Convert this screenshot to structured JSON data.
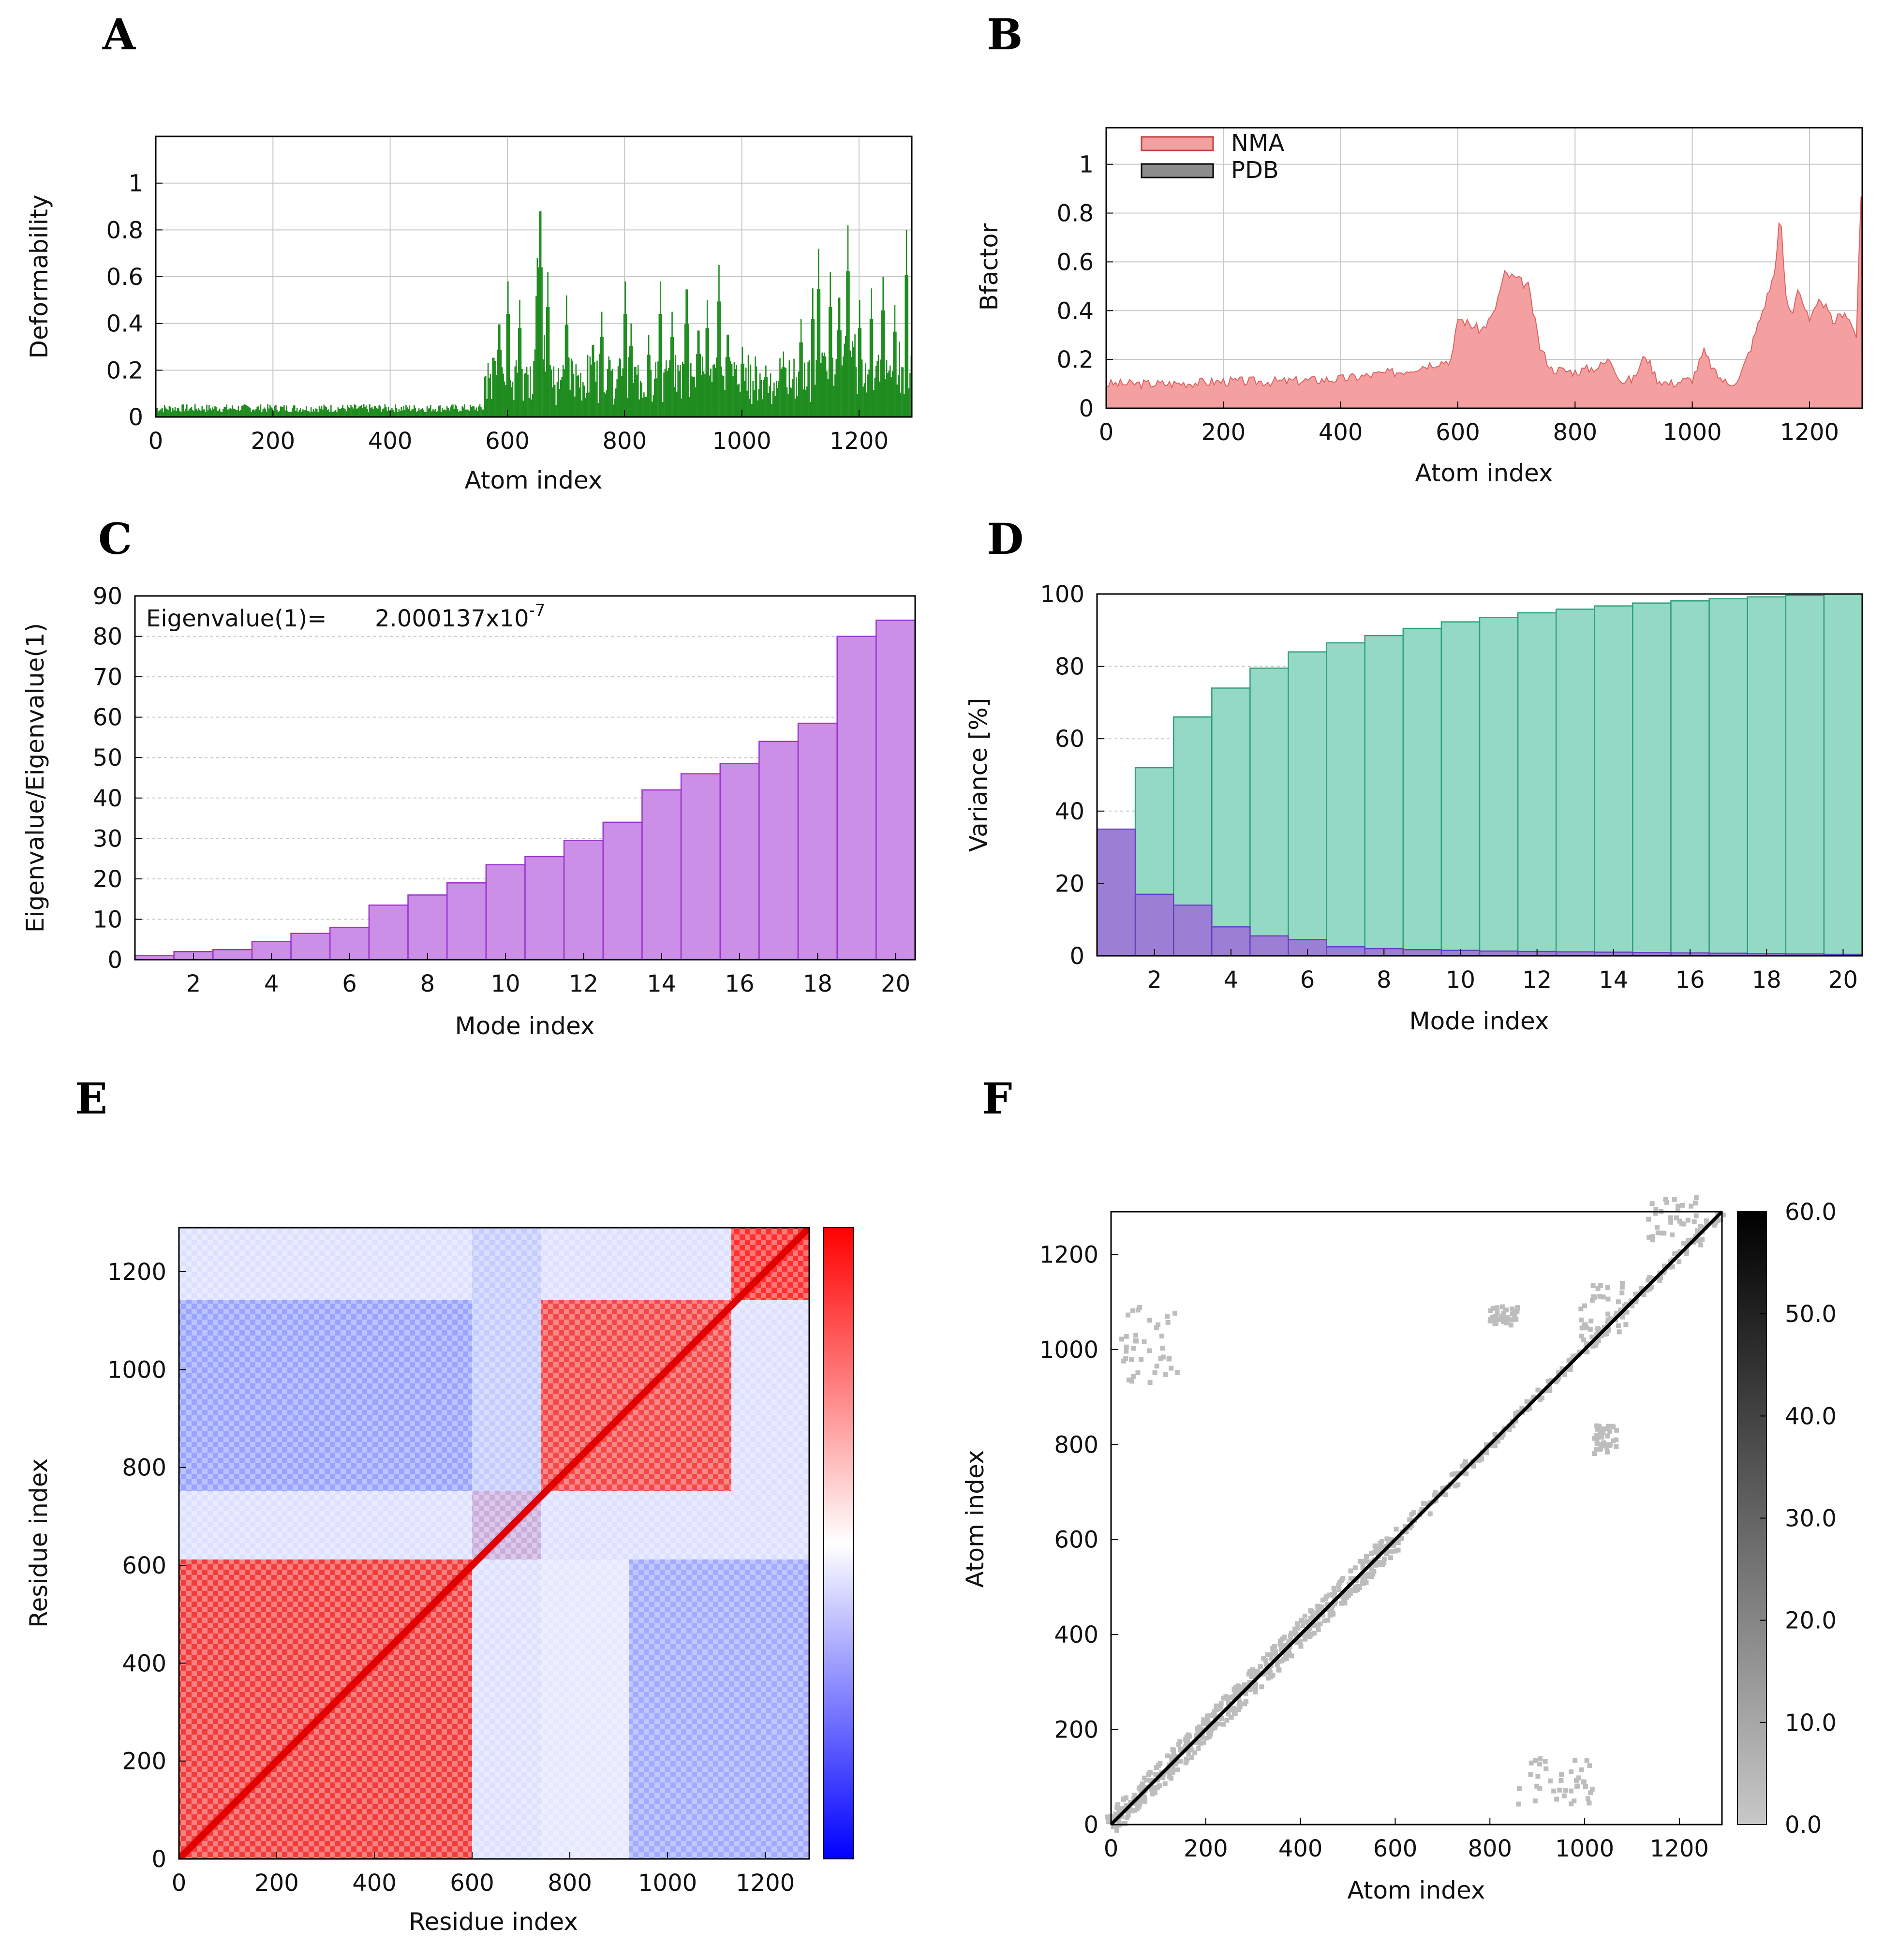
{
  "panel_letters": [
    "A",
    "B",
    "C",
    "D",
    "E",
    "F"
  ],
  "chart_data": [
    {
      "panel": "A",
      "type": "bar",
      "xlabel": "Atom index",
      "ylabel": "Deformability",
      "xlim": [
        0,
        1290
      ],
      "ylim": [
        0,
        1.2
      ],
      "xticks": [
        0,
        200,
        400,
        600,
        800,
        1000,
        1200
      ],
      "yticks": [
        0,
        0.2,
        0.4,
        0.6,
        0.8,
        1
      ],
      "grid": true,
      "color": "#1e8c1e",
      "peaks": [
        [
          560,
          0.12
        ],
        [
          585,
          0.45
        ],
        [
          600,
          0.58
        ],
        [
          620,
          0.5
        ],
        [
          650,
          0.68
        ],
        [
          655,
          1.0
        ],
        [
          668,
          0.62
        ],
        [
          700,
          0.52
        ],
        [
          745,
          0.35
        ],
        [
          760,
          0.45
        ],
        [
          800,
          0.58
        ],
        [
          810,
          0.4
        ],
        [
          840,
          0.35
        ],
        [
          860,
          0.58
        ],
        [
          880,
          0.45
        ],
        [
          905,
          0.62
        ],
        [
          925,
          0.42
        ],
        [
          940,
          0.5
        ],
        [
          960,
          0.65
        ],
        [
          975,
          0.4
        ],
        [
          1000,
          0.3
        ],
        [
          1040,
          0.22
        ],
        [
          1070,
          0.28
        ],
        [
          1100,
          0.42
        ],
        [
          1120,
          0.55
        ],
        [
          1130,
          0.72
        ],
        [
          1150,
          0.62
        ],
        [
          1165,
          0.58
        ],
        [
          1180,
          0.82
        ],
        [
          1200,
          0.5
        ],
        [
          1220,
          0.55
        ],
        [
          1240,
          0.6
        ],
        [
          1260,
          0.48
        ],
        [
          1280,
          0.8
        ]
      ]
    },
    {
      "panel": "B",
      "type": "area",
      "xlabel": "Atom index",
      "ylabel": "Bfactor",
      "xlim": [
        0,
        1290
      ],
      "ylim": [
        0,
        1.15
      ],
      "xticks": [
        0,
        200,
        400,
        600,
        800,
        1000,
        1200
      ],
      "yticks": [
        0,
        0.2,
        0.4,
        0.6,
        0.8,
        1
      ],
      "grid": true,
      "legend_position": "top-left",
      "series": [
        {
          "name": "NMA",
          "color": "#f28a8a",
          "x": [
            0,
            100,
            200,
            300,
            400,
            500,
            550,
            590,
            600,
            640,
            660,
            680,
            700,
            720,
            740,
            760,
            800,
            840,
            860,
            880,
            900,
            920,
            940,
            960,
            1000,
            1020,
            1040,
            1060,
            1080,
            1100,
            1120,
            1140,
            1150,
            1160,
            1170,
            1180,
            1200,
            1220,
            1240,
            1260,
            1280,
            1290
          ],
          "y": [
            0.1,
            0.1,
            0.11,
            0.11,
            0.12,
            0.15,
            0.18,
            0.2,
            0.37,
            0.32,
            0.38,
            0.55,
            0.53,
            0.5,
            0.25,
            0.16,
            0.15,
            0.17,
            0.2,
            0.11,
            0.12,
            0.22,
            0.12,
            0.1,
            0.12,
            0.23,
            0.14,
            0.1,
            0.12,
            0.25,
            0.4,
            0.55,
            0.8,
            0.45,
            0.38,
            0.5,
            0.35,
            0.45,
            0.35,
            0.4,
            0.3,
            1.0
          ]
        },
        {
          "name": "PDB",
          "color": "#8c8c8c",
          "x": [],
          "y": []
        }
      ]
    },
    {
      "panel": "C",
      "type": "bar",
      "xlabel": "Mode index",
      "ylabel": "Eigenvalue/Eigenvalue(1)",
      "annotation_prefix": "Eigenvalue(1)=",
      "annotation_value": "2.000137x10",
      "annotation_exponent": "-7",
      "xticks": [
        2,
        4,
        6,
        8,
        10,
        12,
        14,
        16,
        18,
        20
      ],
      "ylim": [
        0,
        90
      ],
      "yticks": [
        0,
        10,
        20,
        30,
        40,
        50,
        60,
        70,
        80,
        90
      ],
      "grid": true,
      "color": "#cc8fe8",
      "edge_color": "#9b30d0",
      "categories": [
        1,
        2,
        3,
        4,
        5,
        6,
        7,
        8,
        9,
        10,
        11,
        12,
        13,
        14,
        15,
        16,
        17,
        18,
        19,
        20
      ],
      "values": [
        1,
        2,
        2.5,
        4.5,
        6.5,
        8,
        13.5,
        16,
        19,
        23.5,
        25.5,
        29.5,
        34,
        42,
        46,
        48.5,
        54,
        58.5,
        80,
        84
      ]
    },
    {
      "panel": "D",
      "type": "bar",
      "xlabel": "Mode index",
      "ylabel": "Variance [%]",
      "xticks": [
        2,
        4,
        6,
        8,
        10,
        12,
        14,
        16,
        18,
        20
      ],
      "ylim": [
        0,
        100
      ],
      "yticks": [
        0,
        20,
        40,
        60,
        80,
        100
      ],
      "grid": true,
      "categories": [
        1,
        2,
        3,
        4,
        5,
        6,
        7,
        8,
        9,
        10,
        11,
        12,
        13,
        14,
        15,
        16,
        17,
        18,
        19,
        20
      ],
      "series": [
        {
          "color": "#94d9c4",
          "edge_color": "#2fa07e",
          "values": [
            35,
            52,
            66,
            74,
            79.5,
            84,
            86.5,
            88.5,
            90.5,
            92.3,
            93.5,
            94.8,
            95.8,
            96.7,
            97.5,
            98.1,
            98.7,
            99.2,
            99.6,
            100
          ]
        },
        {
          "color": "#9b7fd4",
          "edge_color": "#6a3fc0",
          "values": [
            35,
            17,
            14,
            8,
            5.5,
            4.5,
            2.5,
            2,
            1.7,
            1.5,
            1.3,
            1.2,
            1.1,
            1,
            0.9,
            0.8,
            0.7,
            0.6,
            0.5,
            0.4
          ]
        }
      ]
    },
    {
      "panel": "E",
      "type": "heatmap",
      "xlabel": "Residue index",
      "ylabel": "Residue index",
      "xlim": [
        0,
        1290
      ],
      "ylim": [
        0,
        1290
      ],
      "xticks": [
        0,
        200,
        400,
        600,
        800,
        1000,
        1200
      ],
      "yticks": [
        0,
        200,
        400,
        600,
        800,
        1000,
        1200
      ],
      "colormap": [
        "#0000ff",
        "#ffffff",
        "#ff0000"
      ],
      "blocks": [
        [
          0,
          600,
          "positive"
        ],
        [
          600,
          740,
          "positive"
        ],
        [
          740,
          1130,
          "positive"
        ],
        [
          1130,
          1290,
          "positive"
        ]
      ]
    },
    {
      "panel": "F",
      "type": "heatmap",
      "xlabel": "Atom index",
      "ylabel": "Atom index",
      "xlim": [
        0,
        1290
      ],
      "ylim": [
        0,
        1290
      ],
      "xticks": [
        0,
        200,
        400,
        600,
        800,
        1000,
        1200
      ],
      "yticks": [
        0,
        200,
        400,
        600,
        800,
        1000,
        1200
      ],
      "colorbar_ticks": [
        "0.0",
        "10.0",
        "20.0",
        "30.0",
        "40.0",
        "50.0",
        "60.0"
      ],
      "colorbar_range": [
        0,
        60
      ],
      "colormap": [
        "#c8c8c8",
        "#000000"
      ]
    }
  ]
}
